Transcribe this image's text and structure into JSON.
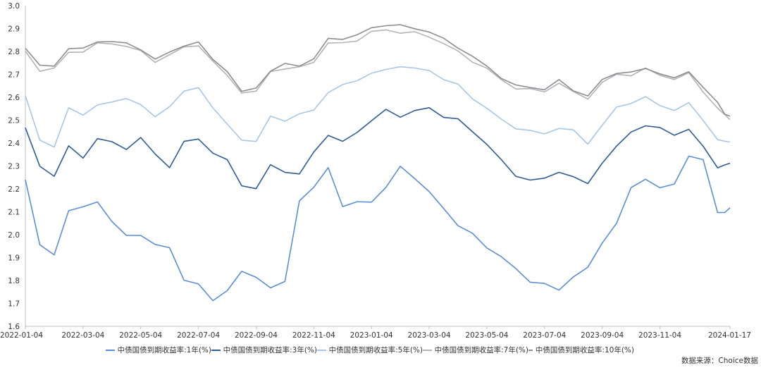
{
  "chart_data": {
    "type": "line",
    "title": "",
    "xlabel": "",
    "ylabel": "",
    "ylim": [
      1.6,
      3.0
    ],
    "y_ticks": [
      "1.6",
      "1.7",
      "1.8",
      "1.9",
      "2.0",
      "2.1",
      "2.2",
      "2.3",
      "2.4",
      "2.5",
      "2.6",
      "2.7",
      "2.8",
      "2.9",
      "3.0"
    ],
    "x_ticks": [
      "2022-01-04",
      "2022-03-04",
      "2022-05-04",
      "2022-07-04",
      "2022-09-04",
      "2022-11-04",
      "2023-01-04",
      "2023-03-04",
      "2023-05-04",
      "2023-07-04",
      "2023-09-04",
      "2023-11-04",
      "2024-01-17"
    ],
    "x_tick_index": [
      0,
      2,
      4,
      6,
      8,
      10,
      12,
      14,
      16,
      18,
      20,
      22,
      24.43
    ],
    "grid": false,
    "legend_position": "bottom",
    "source": "数据来源：Choice数据",
    "x_index": [
      0,
      0.5,
      1,
      1.5,
      2,
      2.5,
      3,
      3.5,
      4,
      4.5,
      5,
      5.5,
      6,
      6.5,
      7,
      7.5,
      8,
      8.5,
      9,
      9.5,
      10,
      10.5,
      11,
      11.5,
      12,
      12.5,
      13,
      13.5,
      14,
      14.5,
      15,
      15.5,
      16,
      16.5,
      17,
      17.5,
      18,
      18.5,
      19,
      19.5,
      20,
      20.5,
      21,
      21.5,
      22,
      22.5,
      23,
      23.5,
      24,
      24.25,
      24.43
    ],
    "series": [
      {
        "name": "中债国债到期收益率:1年(%)",
        "color": "#5b8ed6",
        "values": [
          2.24,
          1.95,
          1.92,
          2.1,
          2.12,
          2.15,
          2.05,
          2.0,
          2.0,
          1.95,
          1.95,
          1.8,
          1.78,
          1.72,
          1.75,
          1.84,
          1.82,
          1.76,
          1.8,
          2.15,
          2.2,
          2.3,
          2.12,
          2.14,
          2.15,
          2.2,
          2.3,
          2.25,
          2.18,
          2.12,
          2.04,
          2.0,
          1.95,
          1.9,
          1.85,
          1.8,
          1.78,
          1.76,
          1.82,
          1.85,
          1.97,
          2.05,
          2.2,
          2.25,
          2.2,
          2.22,
          2.35,
          2.32,
          2.1,
          2.1,
          2.11
        ]
      },
      {
        "name": "中债国债到期收益率:3年(%)",
        "color": "#2e5c95",
        "values": [
          2.46,
          2.3,
          2.26,
          2.38,
          2.34,
          2.42,
          2.4,
          2.38,
          2.42,
          2.35,
          2.3,
          2.4,
          2.42,
          2.36,
          2.32,
          2.22,
          2.2,
          2.3,
          2.28,
          2.26,
          2.36,
          2.44,
          2.4,
          2.45,
          2.5,
          2.54,
          2.52,
          2.54,
          2.55,
          2.52,
          2.5,
          2.45,
          2.4,
          2.32,
          2.26,
          2.24,
          2.24,
          2.28,
          2.25,
          2.22,
          2.32,
          2.38,
          2.45,
          2.48,
          2.46,
          2.44,
          2.46,
          2.38,
          2.3,
          2.3,
          2.31
        ]
      },
      {
        "name": "中债国债到期收益率:5年(%)",
        "color": "#a8c6e6",
        "values": [
          2.6,
          2.42,
          2.38,
          2.55,
          2.53,
          2.56,
          2.58,
          2.6,
          2.56,
          2.52,
          2.56,
          2.62,
          2.65,
          2.55,
          2.48,
          2.42,
          2.4,
          2.52,
          2.5,
          2.52,
          2.55,
          2.62,
          2.65,
          2.68,
          2.7,
          2.72,
          2.74,
          2.72,
          2.72,
          2.68,
          2.65,
          2.6,
          2.55,
          2.5,
          2.47,
          2.45,
          2.44,
          2.47,
          2.45,
          2.4,
          2.48,
          2.55,
          2.58,
          2.6,
          2.56,
          2.55,
          2.57,
          2.5,
          2.42,
          2.4,
          2.41
        ]
      },
      {
        "name": "中债国债到期收益率:7年(%)",
        "color": "#b3b3b6",
        "values": [
          2.8,
          2.72,
          2.72,
          2.8,
          2.8,
          2.83,
          2.84,
          2.82,
          2.8,
          2.76,
          2.78,
          2.82,
          2.83,
          2.75,
          2.7,
          2.62,
          2.62,
          2.72,
          2.72,
          2.73,
          2.76,
          2.83,
          2.84,
          2.85,
          2.88,
          2.9,
          2.88,
          2.88,
          2.87,
          2.83,
          2.8,
          2.76,
          2.72,
          2.68,
          2.64,
          2.63,
          2.63,
          2.66,
          2.62,
          2.6,
          2.66,
          2.7,
          2.7,
          2.72,
          2.7,
          2.68,
          2.7,
          2.63,
          2.55,
          2.52,
          2.51
        ]
      },
      {
        "name": "中债国债到期收益率:10年(%)",
        "color": "#8a8d93",
        "values": [
          2.82,
          2.74,
          2.73,
          2.82,
          2.81,
          2.84,
          2.85,
          2.83,
          2.81,
          2.77,
          2.79,
          2.83,
          2.84,
          2.76,
          2.72,
          2.62,
          2.64,
          2.72,
          2.74,
          2.74,
          2.77,
          2.85,
          2.86,
          2.87,
          2.9,
          2.92,
          2.91,
          2.9,
          2.89,
          2.85,
          2.82,
          2.78,
          2.73,
          2.69,
          2.65,
          2.64,
          2.64,
          2.67,
          2.63,
          2.61,
          2.67,
          2.71,
          2.71,
          2.72,
          2.71,
          2.68,
          2.71,
          2.65,
          2.57,
          2.53,
          2.52
        ]
      }
    ]
  }
}
